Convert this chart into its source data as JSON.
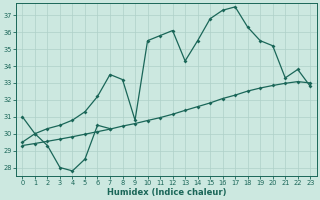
{
  "xlabel": "Humidex (Indice chaleur)",
  "bg_color": "#cce8e0",
  "grid_color": "#afd0c8",
  "line_color": "#1a6658",
  "xlim": [
    -0.5,
    23.5
  ],
  "ylim": [
    27.5,
    37.7
  ],
  "xticks": [
    0,
    1,
    2,
    3,
    4,
    5,
    6,
    7,
    8,
    9,
    10,
    11,
    12,
    13,
    14,
    15,
    16,
    17,
    18,
    19,
    20,
    21,
    22,
    23
  ],
  "yticks": [
    28,
    29,
    30,
    31,
    32,
    33,
    34,
    35,
    36,
    37
  ],
  "curve1_x": [
    0,
    1,
    2,
    3,
    4,
    5,
    6,
    7
  ],
  "curve1_y": [
    31.0,
    30.0,
    29.3,
    28.0,
    27.8,
    28.5,
    30.5,
    30.3
  ],
  "curve2_x": [
    0,
    1,
    2,
    3,
    4,
    5,
    6,
    7,
    8,
    9,
    10,
    11,
    12,
    13,
    14,
    15,
    16,
    17,
    18,
    19,
    20,
    21,
    22,
    23
  ],
  "curve2_y": [
    29.3,
    29.42,
    29.55,
    29.68,
    29.82,
    29.97,
    30.12,
    30.27,
    30.45,
    30.6,
    30.78,
    30.95,
    31.15,
    31.38,
    31.6,
    31.82,
    32.08,
    32.28,
    32.52,
    32.7,
    32.85,
    32.98,
    33.08,
    33.0
  ],
  "curve3_x": [
    0,
    1,
    2,
    3,
    4,
    5,
    6,
    7,
    8,
    9,
    10,
    11,
    12,
    13,
    14,
    15,
    16,
    17,
    18,
    19,
    20,
    21,
    22,
    23
  ],
  "curve3_y": [
    29.5,
    30.0,
    30.3,
    30.5,
    30.8,
    31.3,
    32.2,
    33.5,
    33.2,
    30.8,
    35.5,
    35.8,
    36.1,
    34.3,
    35.5,
    36.8,
    37.3,
    37.5,
    36.3,
    35.5,
    35.2,
    33.3,
    33.8,
    32.8
  ]
}
